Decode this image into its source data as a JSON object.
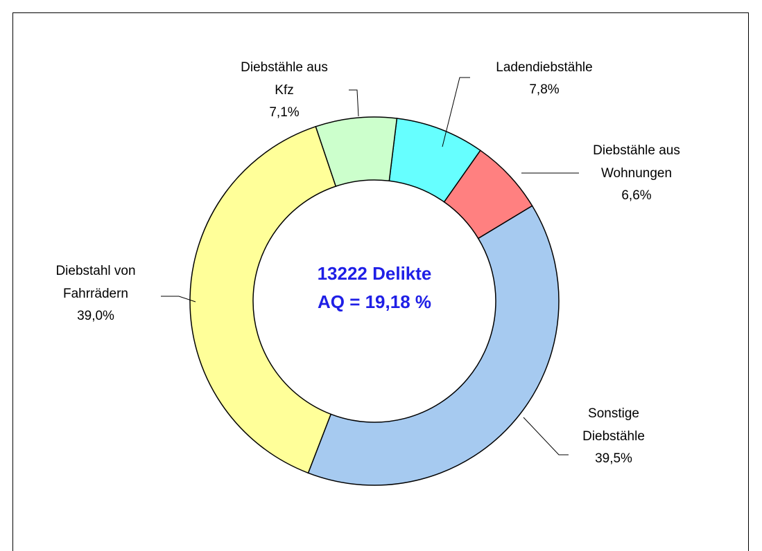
{
  "chart_data": {
    "type": "donut",
    "center_text": [
      "13222 Delikte",
      "AQ = 19,18 %"
    ],
    "categories": [
      "Ladendiebstähle",
      "Diebstähle aus Wohnungen",
      "Sonstige Diebstähle",
      "Diebstahl von Fahrrädern",
      "Diebstähle aus Kfz"
    ],
    "values": [
      7.8,
      6.6,
      39.5,
      39.0,
      7.1
    ],
    "value_labels": [
      "7,8%",
      "6,6%",
      "39,5%",
      "39,0%",
      "7,1%"
    ],
    "colors": [
      "#66ffff",
      "#ff8080",
      "#a6caf0",
      "#ffff99",
      "#ccffcc"
    ]
  }
}
